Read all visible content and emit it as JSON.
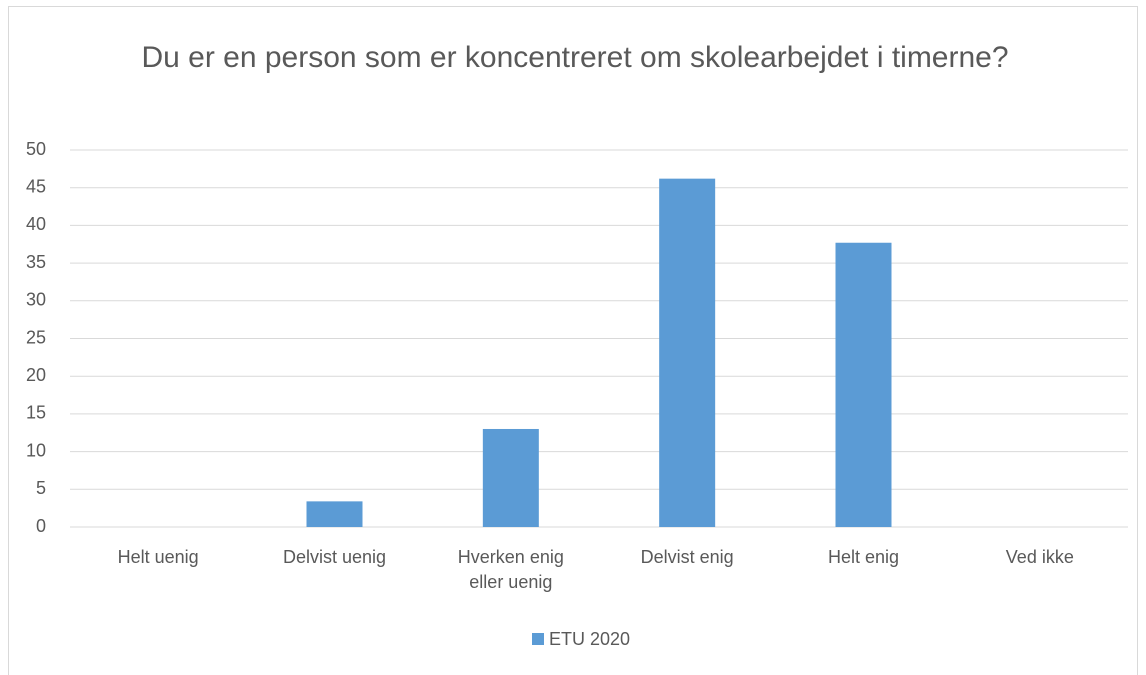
{
  "chart_data": {
    "type": "bar",
    "title": "Du er en person som er koncentreret om skolearbejdet i timerne?",
    "categories": [
      "Helt uenig",
      "Delvist uenig",
      "Hverken enig eller uenig",
      "Delvist enig",
      "Helt enig",
      "Ved ikke"
    ],
    "series": [
      {
        "name": "ETU 2020",
        "color": "#5b9bd5",
        "values": [
          0,
          3.4,
          13.0,
          46.2,
          37.7,
          0
        ]
      }
    ],
    "ylim": [
      0,
      50
    ],
    "yticks": [
      0,
      5,
      10,
      15,
      20,
      25,
      30,
      35,
      40,
      45,
      50
    ],
    "grid": true,
    "legend": "bottom"
  }
}
